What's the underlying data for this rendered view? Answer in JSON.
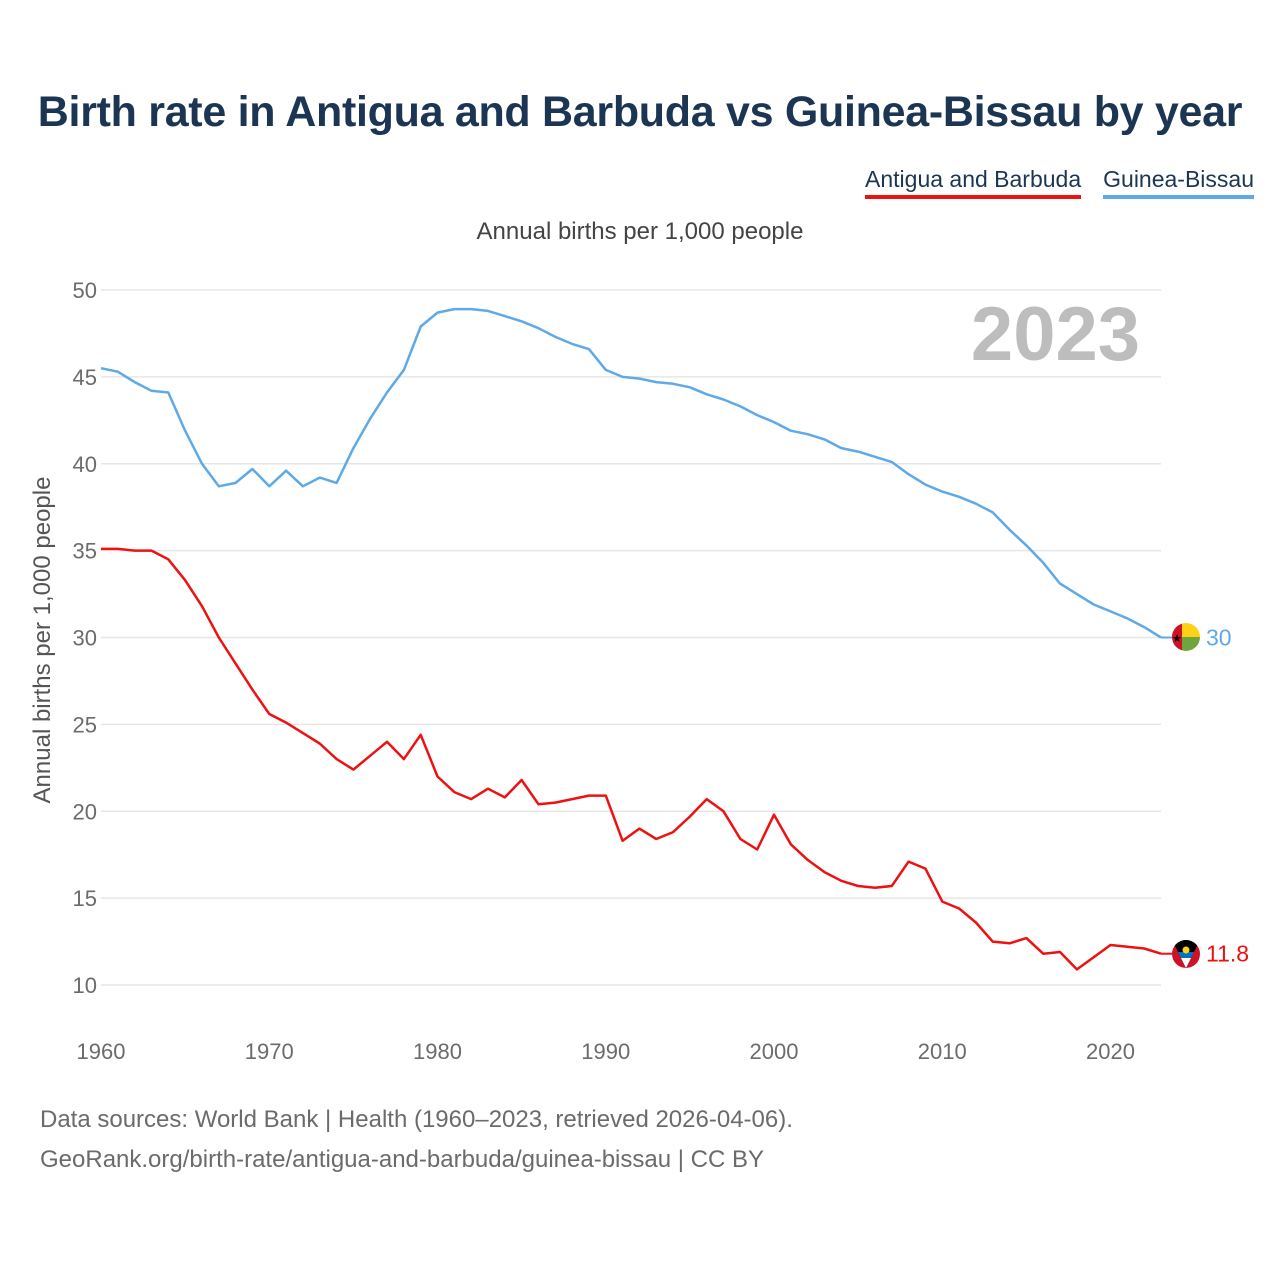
{
  "title": "Birth rate in Antigua and Barbuda vs Guinea-Bissau by year",
  "subtitle": "Annual births per 1,000 people",
  "legend": [
    {
      "label": "Antigua and Barbuda",
      "color": "#ee1111"
    },
    {
      "label": "Guinea-Bissau",
      "color": "#5ea9e8"
    }
  ],
  "footer": {
    "line1": "Data sources: World Bank | Health (1960–2023, retrieved 2026-04-06).",
    "line2": "GeoRank.org/birth-rate/antigua-and-barbuda/guinea-bissau | CC BY"
  },
  "chart_data": {
    "type": "line",
    "title": "Birth rate in Antigua and Barbuda vs Guinea-Bissau by year",
    "ylabel": "Annual births per 1,000 people",
    "xlabel": "",
    "year_label": "2023",
    "xlim": [
      1960,
      2023
    ],
    "ylim": [
      10,
      50
    ],
    "x_ticks": [
      1960,
      1970,
      1980,
      1990,
      2000,
      2010,
      2020
    ],
    "y_ticks": [
      10,
      15,
      20,
      25,
      30,
      35,
      40,
      45,
      50
    ],
    "grid": true,
    "legend_position": "top-right",
    "x": [
      1960,
      1961,
      1962,
      1963,
      1964,
      1965,
      1966,
      1967,
      1968,
      1969,
      1970,
      1971,
      1972,
      1973,
      1974,
      1975,
      1976,
      1977,
      1978,
      1979,
      1980,
      1981,
      1982,
      1983,
      1984,
      1985,
      1986,
      1987,
      1988,
      1989,
      1990,
      1991,
      1992,
      1993,
      1994,
      1995,
      1996,
      1997,
      1998,
      1999,
      2000,
      2001,
      2002,
      2003,
      2004,
      2005,
      2006,
      2007,
      2008,
      2009,
      2010,
      2011,
      2012,
      2013,
      2014,
      2015,
      2016,
      2017,
      2018,
      2019,
      2020,
      2021,
      2022,
      2023
    ],
    "series": [
      {
        "name": "Antigua and Barbuda",
        "color": "#ee1111",
        "end_label": "11.8",
        "values": [
          35.1,
          35.1,
          35.0,
          35.0,
          34.5,
          33.3,
          31.8,
          30.0,
          28.5,
          27.0,
          25.6,
          25.1,
          24.5,
          23.9,
          23.0,
          22.4,
          23.2,
          24.0,
          23.0,
          24.4,
          22.0,
          21.1,
          20.7,
          21.3,
          20.8,
          21.8,
          20.4,
          20.5,
          20.7,
          20.9,
          20.9,
          18.3,
          19.0,
          18.4,
          18.8,
          19.7,
          20.7,
          20.0,
          18.4,
          17.8,
          19.8,
          18.1,
          17.2,
          16.5,
          16.0,
          15.7,
          15.6,
          15.7,
          17.1,
          16.7,
          14.8,
          14.4,
          13.6,
          12.5,
          12.4,
          12.7,
          11.8,
          11.9,
          10.9,
          11.6,
          12.3,
          12.2,
          12.1,
          11.8
        ]
      },
      {
        "name": "Guinea-Bissau",
        "color": "#5ea9e8",
        "end_label": "30",
        "values": [
          45.5,
          45.3,
          44.7,
          44.2,
          44.1,
          41.9,
          40.0,
          38.7,
          38.9,
          39.7,
          38.7,
          39.6,
          38.7,
          39.2,
          38.9,
          40.9,
          42.6,
          44.1,
          45.4,
          47.9,
          48.7,
          48.9,
          48.9,
          48.8,
          48.5,
          48.2,
          47.8,
          47.3,
          46.9,
          46.6,
          45.4,
          45.0,
          44.9,
          44.7,
          44.6,
          44.4,
          44.0,
          43.7,
          43.3,
          42.8,
          42.4,
          41.9,
          41.7,
          41.4,
          40.9,
          40.7,
          40.4,
          40.1,
          39.4,
          38.8,
          38.4,
          38.1,
          37.7,
          37.2,
          36.2,
          35.3,
          34.3,
          33.1,
          32.5,
          31.9,
          31.5,
          31.1,
          30.6,
          30.0
        ]
      }
    ]
  }
}
